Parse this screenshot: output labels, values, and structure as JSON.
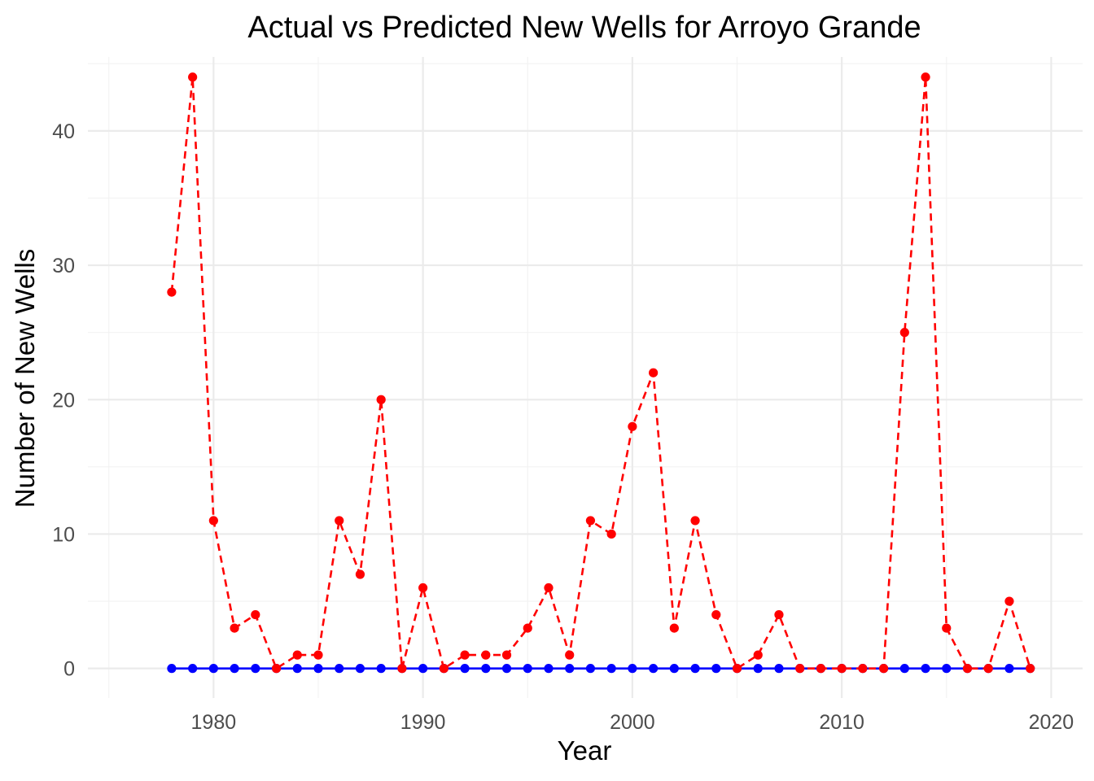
{
  "chart_data": {
    "type": "line",
    "title": "Actual vs Predicted New Wells for Arroyo Grande",
    "xlabel": "Year",
    "ylabel": "Number of New Wells",
    "xlim": [
      1974,
      2021.5
    ],
    "ylim": [
      -2.2,
      45.5
    ],
    "x_ticks": [
      1980,
      1990,
      2000,
      2010,
      2020
    ],
    "y_ticks": [
      0,
      10,
      20,
      30,
      40
    ],
    "grid": true,
    "legend": "none",
    "x": [
      1978,
      1979,
      1980,
      1981,
      1982,
      1983,
      1984,
      1985,
      1986,
      1987,
      1988,
      1989,
      1990,
      1991,
      1992,
      1993,
      1994,
      1995,
      1996,
      1997,
      1998,
      1999,
      2000,
      2001,
      2002,
      2003,
      2004,
      2005,
      2006,
      2007,
      2008,
      2009,
      2010,
      2011,
      2012,
      2013,
      2014,
      2015,
      2016,
      2017,
      2018,
      2019
    ],
    "series": [
      {
        "color": "#0000ff",
        "line_style": "solid",
        "values": [
          0,
          0,
          0,
          0,
          0,
          0,
          0,
          0,
          0,
          0,
          0,
          0,
          0,
          0,
          0,
          0,
          0,
          0,
          0,
          0,
          0,
          0,
          0,
          0,
          0,
          0,
          0,
          0,
          0,
          0,
          0,
          0,
          0,
          0,
          0,
          0,
          0,
          0,
          0,
          0,
          0,
          0
        ]
      },
      {
        "color": "#ff0000",
        "line_style": "dashed",
        "values": [
          28,
          44,
          11,
          3,
          4,
          0,
          1,
          1,
          11,
          7,
          20,
          0,
          6,
          0,
          1,
          1,
          1,
          3,
          6,
          1,
          11,
          10,
          18,
          22,
          3,
          11,
          4,
          0,
          1,
          4,
          0,
          0,
          0,
          0,
          0,
          25,
          44,
          3,
          0,
          0,
          5,
          0
        ]
      }
    ]
  }
}
